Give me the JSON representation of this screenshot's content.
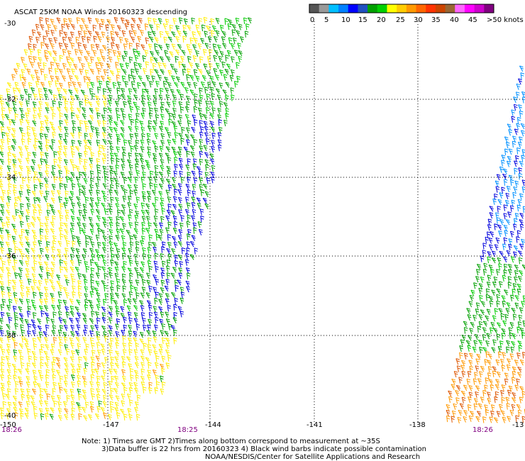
{
  "title": "ASCAT 25KM NOAA Winds 20160323 descending",
  "colorbar": {
    "colors": [
      "#555555",
      "#999999",
      "#00bfff",
      "#0080ff",
      "#0000ff",
      "#2050c0",
      "#00a000",
      "#00d000",
      "#ffff00",
      "#ffcc00",
      "#ff9900",
      "#ff6600",
      "#ff3300",
      "#cc4400",
      "#996633",
      "#ff66ff",
      "#ff00ff",
      "#cc00cc",
      "#800080"
    ],
    "labels": [
      "0",
      "5",
      "10",
      "15",
      "20",
      "25",
      "30",
      "35",
      "40",
      "45",
      ">50 knots"
    ]
  },
  "lat_labels": [
    "-30",
    "-32",
    "-34",
    "-36",
    "-38",
    "-40"
  ],
  "lon_labels": [
    "-150",
    "-147",
    "-144",
    "-141",
    "-138",
    "-13"
  ],
  "time_labels": [
    "18:26",
    "18:25",
    "18:26"
  ],
  "notes": [
    "Note: 1) Times are GMT 2)Times along bottom correspond to measurement at ~35S",
    "3)Data buffer is 22 hrs from 20160323 4) Black wind barbs indicate possible contamination",
    "NOAA/NESDIS/Center for Satellite Applications and Research"
  ],
  "speed_colors": {
    "green": "#00a000",
    "lightgreen": "#00cc00",
    "yellow": "#ffee00",
    "orange": "#ff9900",
    "red": "#dd5500",
    "blue": "#0000dd",
    "cyan": "#0090ff"
  }
}
